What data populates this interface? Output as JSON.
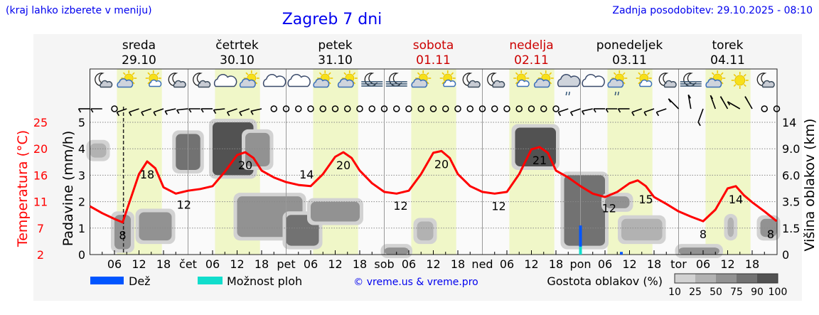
{
  "header": {
    "left_note": "(kraj lahko izberete v meniju)",
    "title": "Zagreb 7 dni",
    "updated": "Zadnja posodobitev: 29.10.2025 - 08:10"
  },
  "colors": {
    "temperature": "#ff0000",
    "daylight": "#f0f7c8",
    "rain": "#0055ff",
    "showers": "#11ddcc",
    "weekend": "#cc0000",
    "link": "#0000ee"
  },
  "chart_data": {
    "type": "line",
    "title": "Zagreb 7 dni",
    "days": [
      {
        "name": "sreda",
        "date": "29.10",
        "weekend": false
      },
      {
        "name": "četrtek",
        "date": "30.10",
        "weekend": false
      },
      {
        "name": "petek",
        "date": "31.10",
        "weekend": false
      },
      {
        "name": "sobota",
        "date": "01.11",
        "weekend": true
      },
      {
        "name": "nedelja",
        "date": "02.11",
        "weekend": true
      },
      {
        "name": "ponedeljek",
        "date": "03.11",
        "weekend": false
      },
      {
        "name": "torek",
        "date": "04.11",
        "weekend": false
      }
    ],
    "x_tick_hours": [
      "06",
      "12",
      "18"
    ],
    "x_day_abbr": [
      "čet",
      "pet",
      "sob",
      "ned",
      "pon",
      "tor"
    ],
    "now_marker_hour": 8.2,
    "daylight_hours": [
      6.6,
      17.6
    ],
    "left_axis": {
      "label": "Padavine (mm/h)",
      "ticks": [
        0,
        1,
        2,
        3,
        4,
        5
      ],
      "range": [
        0,
        5.3
      ]
    },
    "temp_axis": {
      "label": "Temperatura (°C)",
      "ticks": [
        "2",
        "7",
        "11",
        "16",
        "20",
        "25"
      ],
      "range": [
        2,
        25
      ]
    },
    "right_axis": {
      "label": "Višina oblakov (km)",
      "ticks": [
        "0",
        "1.5",
        "3.5",
        "6.0",
        "9.0",
        "14"
      ]
    },
    "temperature": {
      "hours": [
        0,
        3,
        6,
        8,
        12,
        14,
        16,
        18,
        21,
        24,
        27,
        30,
        33,
        36,
        38,
        40,
        42,
        45,
        48,
        51,
        54,
        57,
        60,
        62,
        64,
        66,
        69,
        72,
        75,
        78,
        81,
        84,
        86,
        88,
        90,
        93,
        96,
        99,
        102,
        105,
        108,
        110,
        112,
        114,
        117,
        120,
        123,
        126,
        129,
        132,
        134,
        136,
        138,
        141,
        144,
        147,
        150,
        153,
        156,
        158,
        160,
        162,
        165,
        168
      ],
      "values": [
        10.4,
        9.2,
        8.2,
        7.6,
        16.0,
        18.2,
        17.0,
        13.7,
        12.6,
        13.1,
        13.4,
        13.9,
        16.4,
        19.3,
        19.8,
        18.8,
        16.6,
        15.4,
        14.6,
        14.1,
        13.9,
        16.0,
        19.0,
        19.8,
        18.8,
        16.6,
        14.4,
        12.9,
        12.6,
        13.1,
        16.0,
        19.7,
        20.0,
        18.8,
        16.0,
        13.9,
        12.9,
        12.6,
        12.9,
        16.0,
        20.3,
        20.7,
        19.7,
        16.6,
        15.4,
        13.9,
        12.6,
        12.0,
        12.9,
        14.4,
        14.9,
        13.9,
        12.0,
        10.8,
        9.5,
        8.6,
        7.8,
        9.8,
        13.5,
        13.9,
        12.3,
        11.1,
        9.5,
        7.8
      ]
    },
    "temperature_labels": [
      {
        "hour": 8,
        "text": "8",
        "pos": "below"
      },
      {
        "hour": 14,
        "text": "18",
        "pos": "below"
      },
      {
        "hour": 23,
        "text": "12",
        "pos": "below"
      },
      {
        "hour": 38,
        "text": "20",
        "pos": "below"
      },
      {
        "hour": 53,
        "text": "14",
        "pos": "above"
      },
      {
        "hour": 62,
        "text": "20",
        "pos": "below"
      },
      {
        "hour": 76,
        "text": "12",
        "pos": "below"
      },
      {
        "hour": 86,
        "text": "20",
        "pos": "below"
      },
      {
        "hour": 100,
        "text": "12",
        "pos": "below"
      },
      {
        "hour": 110,
        "text": "21",
        "pos": "below"
      },
      {
        "hour": 127,
        "text": "12",
        "pos": "below"
      },
      {
        "hour": 136,
        "text": "15",
        "pos": "below"
      },
      {
        "hour": 150,
        "text": "8",
        "pos": "below"
      },
      {
        "hour": 158,
        "text": "14",
        "pos": "below"
      },
      {
        "hour": 168,
        "text": "8",
        "pos": "below"
      }
    ],
    "precipitation": [
      {
        "hour": 120,
        "rain": 1.1,
        "showers": 0.3
      },
      {
        "hour": 130,
        "rain": 0.1,
        "showers": 0
      }
    ],
    "clouds": [
      {
        "from": 0,
        "to": 4,
        "km_low": 8,
        "km_high": 10,
        "cover": 25
      },
      {
        "from": 6,
        "to": 10,
        "km_low": 0.3,
        "km_high": 2.5,
        "cover": 60
      },
      {
        "from": 12,
        "to": 20,
        "km_low": 0.8,
        "km_high": 2.7,
        "cover": 50
      },
      {
        "from": 21,
        "to": 27,
        "km_low": 6.6,
        "km_high": 11.8,
        "cover": 85
      },
      {
        "from": 30,
        "to": 40,
        "km_low": 6,
        "km_high": 14,
        "cover": 90
      },
      {
        "from": 38,
        "to": 44,
        "km_low": 7,
        "km_high": 12,
        "cover": 70
      },
      {
        "from": 36,
        "to": 52,
        "km_low": 1,
        "km_high": 4,
        "cover": 70
      },
      {
        "from": 48,
        "to": 56,
        "km_low": 0.5,
        "km_high": 2.5,
        "cover": 85
      },
      {
        "from": 54,
        "to": 66,
        "km_low": 2,
        "km_high": 3.5,
        "cover": 60
      },
      {
        "from": 72,
        "to": 78,
        "km_low": 0,
        "km_high": 0.4,
        "cover": 60
      },
      {
        "from": 80,
        "to": 84,
        "km_low": 0.8,
        "km_high": 2,
        "cover": 40
      },
      {
        "from": 104,
        "to": 114,
        "km_low": 7,
        "km_high": 13,
        "cover": 90
      },
      {
        "from": 116,
        "to": 126,
        "km_low": 0.5,
        "km_high": 6,
        "cover": 85
      },
      {
        "from": 126,
        "to": 132,
        "km_low": 3,
        "km_high": 4,
        "cover": 60
      },
      {
        "from": 130,
        "to": 140,
        "km_low": 0.8,
        "km_high": 2.2,
        "cover": 40
      },
      {
        "from": 144,
        "to": 154,
        "km_low": 0,
        "km_high": 0.4,
        "cover": 50
      },
      {
        "from": 156,
        "to": 157.5,
        "km_low": 1,
        "km_high": 2.3,
        "cover": 40
      },
      {
        "from": 164,
        "to": 168,
        "km_low": 1,
        "km_high": 2.2,
        "cover": 50
      }
    ],
    "weather_icons": [
      "moon-cloud",
      "sun-cloud",
      "sun-small-cloud",
      "moon-cloud",
      "moon-cloud",
      "cloudy",
      "sun-cloud",
      "cloudy",
      "cloudy",
      "sun-cloud",
      "sun-cloud",
      "moon-fog",
      "moon-fog",
      "sun-cloud",
      "sun-small-cloud",
      "moon-cloud",
      "moon-cloud",
      "sun-small-cloud",
      "sun-cloud",
      "cloudy-rain",
      "cloudy",
      "sun-cloud-rain",
      "sun-small-cloud",
      "moon-cloud",
      "moon-fog",
      "sun-cloud",
      "sun",
      "moon-cloud"
    ],
    "wind_directions": [
      270,
      270,
      null,
      240,
      240,
      240,
      240,
      250,
      260,
      270,
      270,
      260,
      240,
      240,
      250,
      null,
      null,
      null,
      null,
      null,
      null,
      null,
      null,
      null,
      null,
      null,
      null,
      null,
      null,
      null,
      null,
      null,
      null,
      null,
      null,
      null,
      null,
      null,
      null,
      240,
      240,
      250,
      270,
      270,
      270,
      240,
      240,
      240,
      315,
      350,
      200,
      340,
      330,
      300,
      330,
      null,
      null,
      null,
      null,
      null,
      null,
      null,
      null,
      null,
      null,
      null,
      200,
      null,
      null,
      null,
      null,
      null,
      null
    ],
    "wind_hours_step": 3
  },
  "legend": {
    "rain_label": "Dež",
    "showers_label": "Možnost ploh",
    "copyright": "© vreme.us & vreme.pro",
    "cloud_density_label": "Gostota oblakov (%)",
    "cloud_density_ticks": [
      "10",
      "25",
      "50",
      "75",
      "90",
      "100"
    ],
    "cloud_density_colors": [
      "#d2d2d2",
      "#b2b2b2",
      "#929292",
      "#727272",
      "#525252"
    ]
  }
}
